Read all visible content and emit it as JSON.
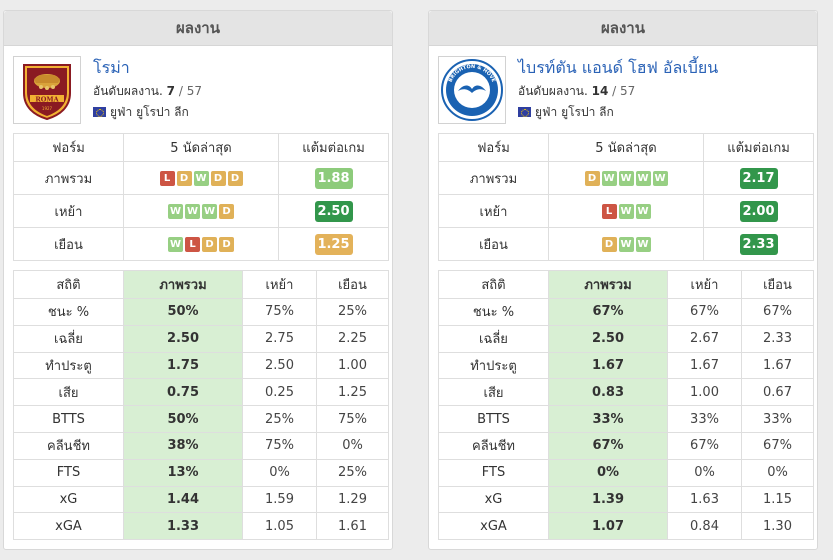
{
  "panels": [
    {
      "title": "ผลงาน",
      "team_name": "โรม่า",
      "rank_label": "อันดับผลงาน.",
      "rank": "7",
      "rank_total": " / 57",
      "league": "ยูฟ่า ยูโรปา ลีก",
      "form_headers": [
        "ฟอร์ม",
        "5 นัดล่าสุด",
        "แต้มต่อเกม"
      ],
      "form_rows": [
        {
          "label": "ภาพรวม",
          "results": [
            "L",
            "D",
            "W",
            "D",
            "D"
          ],
          "ppg": "1.88",
          "ppg_color": "#8dcb7b"
        },
        {
          "label": "เหย้า",
          "results": [
            "W",
            "W",
            "W",
            "D"
          ],
          "ppg": "2.50",
          "ppg_color": "#32964b"
        },
        {
          "label": "เยือน",
          "results": [
            "W",
            "L",
            "D",
            "D"
          ],
          "ppg": "1.25",
          "ppg_color": "#e3b25a"
        }
      ],
      "stats_headers": [
        "สถิติ",
        "ภาพรวม",
        "เหย้า",
        "เยือน"
      ],
      "stats_rows": [
        [
          "ชนะ %",
          "50%",
          "75%",
          "25%"
        ],
        [
          "เฉลี่ย",
          "2.50",
          "2.75",
          "2.25"
        ],
        [
          "ทำประตู",
          "1.75",
          "2.50",
          "1.00"
        ],
        [
          "เสีย",
          "0.75",
          "0.25",
          "1.25"
        ],
        [
          "BTTS",
          "50%",
          "25%",
          "75%"
        ],
        [
          "คลีนชีท",
          "38%",
          "75%",
          "0%"
        ],
        [
          "FTS",
          "13%",
          "0%",
          "25%"
        ],
        [
          "xG",
          "1.44",
          "1.59",
          "1.29"
        ],
        [
          "xGA",
          "1.33",
          "1.05",
          "1.61"
        ]
      ],
      "logo": "roma-crest-icon"
    },
    {
      "title": "ผลงาน",
      "team_name": "ไบรท์ตัน แอนด์ โฮฟ อัลเบี้ยน",
      "rank_label": "อันดับผลงาน.",
      "rank": "14",
      "rank_total": " / 57",
      "league": "ยูฟ่า ยูโรปา ลีก",
      "form_headers": [
        "ฟอร์ม",
        "5 นัดล่าสุด",
        "แต้มต่อเกม"
      ],
      "form_rows": [
        {
          "label": "ภาพรวม",
          "results": [
            "D",
            "W",
            "W",
            "W",
            "W"
          ],
          "ppg": "2.17",
          "ppg_color": "#32964b"
        },
        {
          "label": "เหย้า",
          "results": [
            "L",
            "W",
            "W"
          ],
          "ppg": "2.00",
          "ppg_color": "#32964b"
        },
        {
          "label": "เยือน",
          "results": [
            "D",
            "W",
            "W"
          ],
          "ppg": "2.33",
          "ppg_color": "#32964b"
        }
      ],
      "stats_headers": [
        "สถิติ",
        "ภาพรวม",
        "เหย้า",
        "เยือน"
      ],
      "stats_rows": [
        [
          "ชนะ %",
          "67%",
          "67%",
          "67%"
        ],
        [
          "เฉลี่ย",
          "2.50",
          "2.67",
          "2.33"
        ],
        [
          "ทำประตู",
          "1.67",
          "1.67",
          "1.67"
        ],
        [
          "เสีย",
          "0.83",
          "1.00",
          "0.67"
        ],
        [
          "BTTS",
          "33%",
          "33%",
          "33%"
        ],
        [
          "คลีนชีท",
          "67%",
          "67%",
          "67%"
        ],
        [
          "FTS",
          "0%",
          "0%",
          "0%"
        ],
        [
          "xG",
          "1.39",
          "1.63",
          "1.15"
        ],
        [
          "xGA",
          "1.07",
          "0.84",
          "1.30"
        ]
      ],
      "logo": "brighton-crest-icon",
      "logo_text_top": "BRIGHTON & HOVE",
      "logo_text_bottom": "ALBION"
    }
  ],
  "colors": {
    "win": "#97cf83",
    "draw": "#e0b158",
    "loss": "#cd5544",
    "link": "#2a62b6",
    "highlight_col": "#d8efd3"
  }
}
